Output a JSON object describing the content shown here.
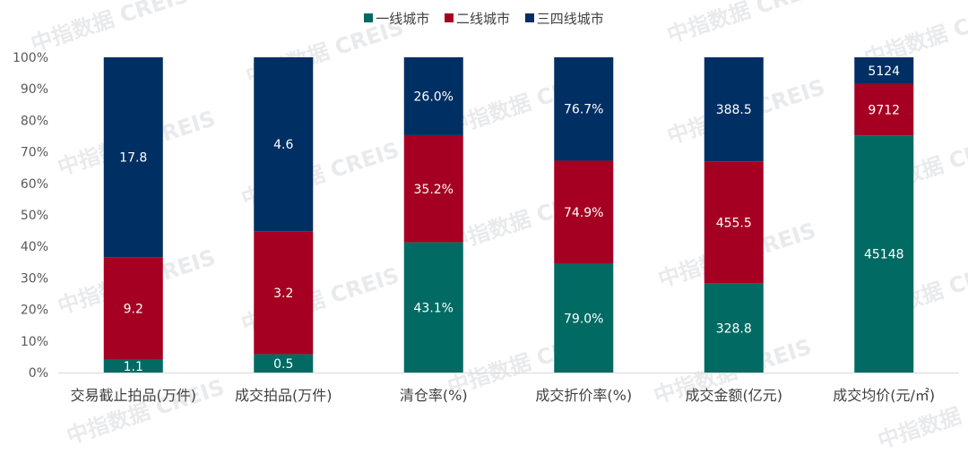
{
  "watermark": "中指数据 CREIS",
  "colors": {
    "tier1": "#006a63",
    "tier2": "#a50021",
    "tier34": "#002f63"
  },
  "chart_data": {
    "type": "bar",
    "stacked": true,
    "normalized": true,
    "title": "",
    "xlabel": "",
    "ylabel": "",
    "ylim": [
      0,
      100
    ],
    "yticks": [
      "0%",
      "10%",
      "20%",
      "30%",
      "40%",
      "50%",
      "60%",
      "70%",
      "80%",
      "90%",
      "100%"
    ],
    "legend_position": "top-center",
    "grid": false,
    "categories": [
      "交易截止拍品(万件)",
      "成交拍品(万件)",
      "清仓率(%)",
      "成交折价率(%)",
      "成交金额(亿元)",
      "成交均价(元/㎡)"
    ],
    "series": [
      {
        "name": "一线城市",
        "color": "#006a63",
        "values": [
          4.1,
          5.8,
          41.3,
          34.5,
          28.2,
          75.2
        ],
        "labels": [
          "1.1",
          "0.5",
          "43.1%",
          "79.0%",
          "328.8",
          "45148"
        ]
      },
      {
        "name": "二线城市",
        "color": "#a50021",
        "values": [
          32.5,
          39.0,
          34.0,
          32.7,
          38.8,
          16.3
        ],
        "labels": [
          "9.2",
          "3.2",
          "35.2%",
          "74.9%",
          "455.5",
          "9712"
        ]
      },
      {
        "name": "三四线城市",
        "color": "#002f63",
        "values": [
          63.4,
          55.2,
          24.7,
          32.8,
          33.0,
          8.5
        ],
        "labels": [
          "17.8",
          "4.6",
          "26.0%",
          "76.7%",
          "388.5",
          "5124"
        ]
      }
    ]
  }
}
